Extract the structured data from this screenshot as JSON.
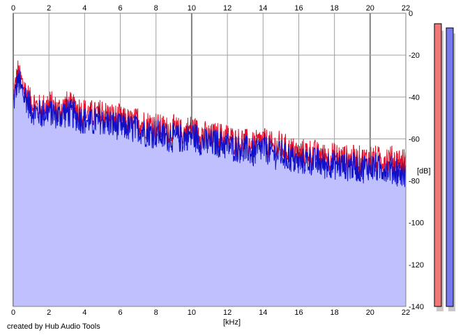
{
  "credit": "created by Hub Audio Tools",
  "chart_data": {
    "type": "area",
    "xlabel": "[kHz]",
    "ylabel": "[dB]",
    "xlim": [
      0,
      22
    ],
    "ylim": [
      -140,
      0
    ],
    "x_ticks": [
      0,
      2,
      4,
      6,
      8,
      10,
      12,
      14,
      16,
      18,
      20,
      22
    ],
    "y_ticks": [
      0,
      -20,
      -40,
      -60,
      -80,
      -100,
      -120,
      -140
    ],
    "y_tick_labels": [
      "0",
      "-20",
      "-40",
      "-60",
      "-80",
      "-100",
      "-120",
      "-140"
    ],
    "grid": true,
    "series": [
      {
        "color": "#e0102a",
        "x": [
          0,
          0.25,
          0.5,
          1,
          1.5,
          2,
          2.5,
          3,
          3.5,
          4,
          4.5,
          5,
          5.5,
          6,
          6.5,
          7,
          7.5,
          8,
          8.5,
          9,
          9.5,
          10,
          10.5,
          11,
          11.5,
          12,
          12.5,
          13,
          13.5,
          14,
          14.5,
          15,
          15.5,
          16,
          16.5,
          17,
          17.5,
          18,
          18.5,
          19,
          19.5,
          20,
          20.5,
          21,
          21.5,
          22
        ],
        "values": [
          -40,
          -28,
          -33,
          -42,
          -45,
          -43,
          -46,
          -43,
          -45,
          -47,
          -48,
          -47,
          -49,
          -50,
          -52,
          -51,
          -53,
          -53,
          -55,
          -55,
          -57,
          -54,
          -57,
          -59,
          -58,
          -59,
          -61,
          -61,
          -63,
          -60,
          -63,
          -63,
          -65,
          -67,
          -66,
          -67,
          -68,
          -68,
          -69,
          -69,
          -70,
          -69,
          -70,
          -69,
          -70,
          -71
        ]
      },
      {
        "color": "#1010c8",
        "x": [
          0,
          0.25,
          0.5,
          1,
          1.5,
          2,
          2.5,
          3,
          3.5,
          4,
          4.5,
          5,
          5.5,
          6,
          6.5,
          7,
          7.5,
          8,
          8.5,
          9,
          9.5,
          10,
          10.5,
          11,
          11.5,
          12,
          12.5,
          13,
          13.5,
          14,
          14.5,
          15,
          15.5,
          16,
          16.5,
          17,
          17.5,
          18,
          18.5,
          19,
          19.5,
          20,
          20.5,
          21,
          21.5,
          22
        ],
        "values": [
          -41,
          -30,
          -35,
          -44,
          -46,
          -45,
          -47,
          -45,
          -47,
          -49,
          -50,
          -49,
          -51,
          -52,
          -53,
          -53,
          -55,
          -55,
          -57,
          -57,
          -58,
          -56,
          -59,
          -60,
          -60,
          -61,
          -62,
          -63,
          -65,
          -62,
          -65,
          -65,
          -67,
          -69,
          -68,
          -69,
          -70,
          -70,
          -71,
          -71,
          -72,
          -71,
          -72,
          -72,
          -73,
          -75
        ]
      }
    ]
  },
  "meters": {
    "left": {
      "color": "#f07878",
      "level_db": -5
    },
    "right": {
      "color": "#7878f0",
      "level_db": -7
    }
  }
}
